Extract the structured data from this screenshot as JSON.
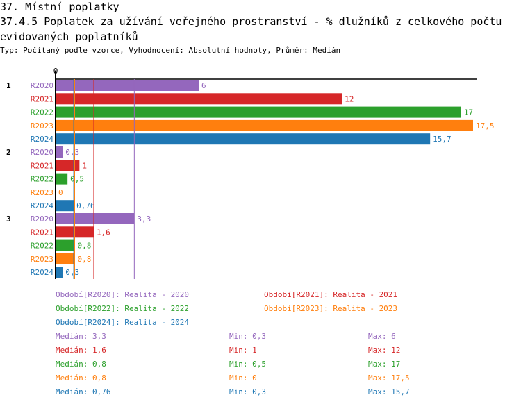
{
  "header": {
    "section_title": "37. Místní poplatky",
    "chart_title": "37.4.5 Poplatek za užívání veřejného prostranství - % dlužníků z celkového počtu evidovaných poplatníků",
    "subtitle": "Typ: Počítaný podle vzorce, Vyhodnocení: Absolutní hodnoty, Průměr: Medián"
  },
  "chart_data": {
    "type": "bar",
    "orientation": "horizontal",
    "title": "37.4.5 Poplatek za užívání veřejného prostranství - % dlužníků z celkového počtu evidovaných poplatníků",
    "x_tick_labels": [
      "0"
    ],
    "xlim": [
      0,
      17.5
    ],
    "groups": [
      "1",
      "2",
      "3"
    ],
    "series": [
      {
        "name": "R2020",
        "legend": "Období[R2020]: Realita - 2020",
        "color": "#9467bd",
        "values": [
          6,
          0.3,
          3.3
        ],
        "labels": [
          "6",
          "0,3",
          "3,3"
        ],
        "median": 3.3,
        "median_label": "3,3",
        "min_label": "0,3",
        "max_label": "6"
      },
      {
        "name": "R2021",
        "legend": "Období[R2021]: Realita - 2021",
        "color": "#d62728",
        "values": [
          12,
          1,
          1.6
        ],
        "labels": [
          "12",
          "1",
          "1,6"
        ],
        "median": 1.6,
        "median_label": "1,6",
        "min_label": "1",
        "max_label": "12"
      },
      {
        "name": "R2022",
        "legend": "Období[R2022]: Realita - 2022",
        "color": "#2ca02c",
        "values": [
          17,
          0.5,
          0.8
        ],
        "labels": [
          "17",
          "0,5",
          "0,8"
        ],
        "median": 0.8,
        "median_label": "0,8",
        "min_label": "0,5",
        "max_label": "17"
      },
      {
        "name": "R2023",
        "legend": "Období[R2023]: Realita - 2023",
        "color": "#ff7f0e",
        "values": [
          17.5,
          0,
          0.8
        ],
        "labels": [
          "17,5",
          "0",
          "0,8"
        ],
        "median": 0.8,
        "median_label": "0,8",
        "min_label": "0",
        "max_label": "17,5"
      },
      {
        "name": "R2024",
        "legend": "Období[R2024]: Realita - 2024",
        "color": "#1f77b4",
        "values": [
          15.7,
          0.76,
          0.3
        ],
        "labels": [
          "15,7",
          "0,76",
          "0,3"
        ],
        "median": 0.76,
        "median_label": "0,76",
        "min_label": "0,3",
        "max_label": "15,7"
      }
    ],
    "stat_prefixes": {
      "median": "Medián: ",
      "min": "Min: ",
      "max": "Max: "
    }
  }
}
